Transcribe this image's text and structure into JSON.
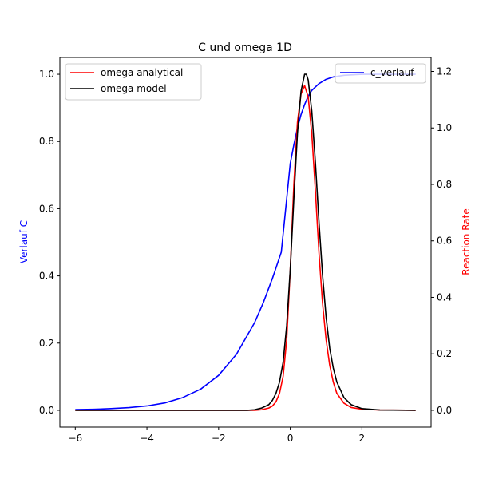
{
  "chart_data": {
    "type": "line",
    "title": "C und omega 1D",
    "ylabel_left": "Verlauf C",
    "ylabel_right": "Reaction Rate",
    "xlabel": "",
    "xlim": [
      -6.43,
      3.93
    ],
    "ylim_left": [
      -0.05,
      1.05
    ],
    "ylim_right": [
      -0.0595,
      1.2495
    ],
    "x_ticks": [
      -6,
      -4,
      -2,
      0,
      2
    ],
    "x_tick_labels": [
      "−6",
      "−4",
      "−2",
      "0",
      "2"
    ],
    "y_left_ticks": [
      0.0,
      0.2,
      0.4,
      0.6,
      0.8,
      1.0
    ],
    "y_left_tick_labels": [
      "0.0",
      "0.2",
      "0.4",
      "0.6",
      "0.8",
      "1.0"
    ],
    "y_right_ticks": [
      0.0,
      0.2,
      0.4,
      0.6,
      0.8,
      1.0,
      1.2
    ],
    "y_right_tick_labels": [
      "0.0",
      "0.2",
      "0.4",
      "0.6",
      "0.8",
      "1.0",
      "1.2"
    ],
    "grid": false,
    "legend_left_placement": "upper-left",
    "legend_right_placement": "upper-right",
    "series": [
      {
        "name": "c_verlauf",
        "axis": "left",
        "color": "#0000ff",
        "x": [
          -6.0,
          -5.5,
          -5.0,
          -4.5,
          -4.0,
          -3.5,
          -3.0,
          -2.5,
          -2.0,
          -1.5,
          -1.0,
          -0.75,
          -0.5,
          -0.25,
          0.0,
          0.1,
          0.2,
          0.3,
          0.4,
          0.5,
          0.6,
          0.8,
          1.0,
          1.2,
          1.5,
          2.0,
          2.5,
          3.0,
          3.5
        ],
        "y": [
          0.002,
          0.003,
          0.005,
          0.008,
          0.013,
          0.022,
          0.038,
          0.063,
          0.104,
          0.167,
          0.26,
          0.321,
          0.392,
          0.471,
          0.735,
          0.79,
          0.84,
          0.88,
          0.91,
          0.935,
          0.952,
          0.972,
          0.985,
          0.992,
          0.997,
          1.0,
          1.0,
          1.0,
          1.0
        ]
      },
      {
        "name": "omega analytical",
        "axis": "right",
        "color": "#ff0000",
        "x": [
          -6.0,
          -1.0,
          -0.8,
          -0.6,
          -0.5,
          -0.4,
          -0.3,
          -0.2,
          -0.1,
          0.0,
          0.1,
          0.2,
          0.3,
          0.4,
          0.5,
          0.6,
          0.7,
          0.8,
          0.9,
          1.0,
          1.1,
          1.2,
          1.3,
          1.5,
          1.7,
          2.0,
          2.5,
          3.5
        ],
        "y": [
          0.0,
          0.0,
          0.002,
          0.008,
          0.015,
          0.03,
          0.06,
          0.12,
          0.25,
          0.5,
          0.8,
          1.02,
          1.12,
          1.15,
          1.11,
          0.98,
          0.78,
          0.56,
          0.38,
          0.25,
          0.16,
          0.1,
          0.06,
          0.025,
          0.01,
          0.004,
          0.001,
          0.0
        ]
      },
      {
        "name": "omega model",
        "axis": "right",
        "color": "#000000",
        "x": [
          -6.0,
          -1.2,
          -1.0,
          -0.8,
          -0.6,
          -0.5,
          -0.4,
          -0.3,
          -0.2,
          -0.1,
          0.0,
          0.1,
          0.2,
          0.3,
          0.4,
          0.45,
          0.5,
          0.6,
          0.7,
          0.8,
          0.9,
          1.0,
          1.1,
          1.2,
          1.3,
          1.5,
          1.7,
          2.0,
          2.5,
          3.5
        ],
        "y": [
          0.0,
          0.0,
          0.002,
          0.008,
          0.02,
          0.035,
          0.06,
          0.1,
          0.17,
          0.3,
          0.5,
          0.75,
          0.98,
          1.13,
          1.19,
          1.19,
          1.17,
          1.06,
          0.88,
          0.67,
          0.48,
          0.33,
          0.22,
          0.15,
          0.1,
          0.045,
          0.02,
          0.006,
          0.001,
          0.0
        ]
      }
    ],
    "legend_left": [
      "omega analytical",
      "omega model"
    ],
    "legend_right": [
      "c_verlauf"
    ]
  }
}
